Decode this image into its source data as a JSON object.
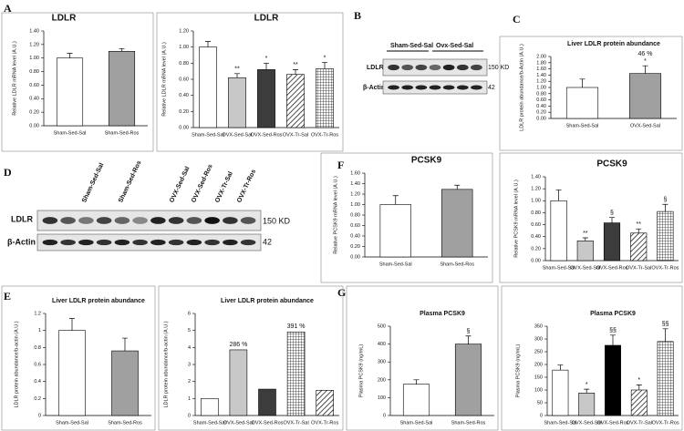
{
  "panel_labels": [
    "A",
    "B",
    "C",
    "D",
    "E",
    "F",
    "G"
  ],
  "blots": [
    {
      "groups": [
        "Sham-Sed-Sal",
        "Ovx-Sed-Sal"
      ],
      "rows": [
        "LDLR",
        "β-Actin"
      ],
      "sizes": [
        "150 KD",
        "42"
      ]
    },
    {
      "groups": [
        "Sham-Sed-Sal",
        "Sham-Sed-Ros",
        "OVX-Sed-Sal",
        "OVX-Sed-Ros",
        "OVX-Tr-Sal",
        "OVX-Tr-Ros"
      ],
      "rows": [
        "LDLR",
        "β-Actin"
      ],
      "sizes": [
        "150 KD",
        "42"
      ]
    }
  ],
  "chart_data": [
    {
      "type": "bar",
      "title": "LDLR",
      "y_label": "Relative LDLR mRNA level (A.U.)",
      "categories": [
        "Sham-Sed-Sal",
        "Sham-Sed-Ros"
      ],
      "values": [
        1.0,
        1.1
      ],
      "errors": [
        0.07,
        0.04
      ],
      "colors": [
        "#ffffff",
        "#a0a0a0"
      ],
      "ylim": [
        0,
        1.4
      ],
      "yticks": [
        {
          "value": 0,
          "label": "0.00"
        },
        {
          "value": 0.2,
          "label": "0.20"
        },
        {
          "value": 0.4,
          "label": "0.40"
        },
        {
          "value": 0.6,
          "label": "0.60"
        },
        {
          "value": 0.8,
          "label": "0.80"
        },
        {
          "value": 1.0,
          "label": "1.00"
        },
        {
          "value": 1.2,
          "label": "1.20"
        },
        {
          "value": 1.4,
          "label": "1.40"
        }
      ]
    },
    {
      "type": "bar",
      "title": "LDLR",
      "y_label": "Relative LDLR mRNA level (A.U.)",
      "categories": [
        "Sham-Sed-Sal",
        "OVX-Sed-Sal",
        "OVX-Sed-Ros",
        "OVX-Tr-Sal",
        "OVX-Tr-Ros"
      ],
      "values": [
        1.0,
        0.62,
        0.72,
        0.66,
        0.73
      ],
      "errors": [
        0.07,
        0.05,
        0.08,
        0.06,
        0.08
      ],
      "bar_labels": [
        null,
        "**",
        "*",
        "**",
        "*"
      ],
      "colors": [
        "#ffffff",
        "#c8c8c8",
        "#3c3c3c",
        "hatch",
        "grid"
      ],
      "ylim": [
        0,
        1.2
      ],
      "yticks": [
        {
          "value": 0,
          "label": "0.00"
        },
        {
          "value": 0.2,
          "label": "0.20"
        },
        {
          "value": 0.4,
          "label": "0.40"
        },
        {
          "value": 0.6,
          "label": "0.60"
        },
        {
          "value": 0.8,
          "label": "0.80"
        },
        {
          "value": 1.0,
          "label": "1.00"
        },
        {
          "value": 1.2,
          "label": "1.20"
        }
      ]
    },
    {
      "type": "bar",
      "title": "Liver LDLR protein abundance",
      "y_label": "LDLR protein abundance/b-Actin (A.U.)",
      "categories": [
        "Sham-Sed-Sal",
        "OVX-Sed-Sal"
      ],
      "values": [
        1.0,
        1.45
      ],
      "errors": [
        0.27,
        0.25
      ],
      "bar_labels": [
        null,
        "*"
      ],
      "notes": [
        null,
        "46 %"
      ],
      "colors": [
        "#ffffff",
        "#a0a0a0"
      ],
      "ylim": [
        0,
        2.0
      ],
      "yticks": [
        {
          "value": 0,
          "label": "0.00"
        },
        {
          "value": 0.2,
          "label": "0.20"
        },
        {
          "value": 0.4,
          "label": "0.40"
        },
        {
          "value": 0.6,
          "label": "0.60"
        },
        {
          "value": 0.8,
          "label": "0.80"
        },
        {
          "value": 1.0,
          "label": "1.00"
        },
        {
          "value": 1.2,
          "label": "1.20"
        },
        {
          "value": 1.4,
          "label": "1.40"
        },
        {
          "value": 1.6,
          "label": "1.60"
        },
        {
          "value": 1.8,
          "label": "1.80"
        },
        {
          "value": 2.0,
          "label": "2.00"
        }
      ]
    },
    {
      "type": "bar",
      "title": "PCSK9",
      "y_label": "Relative PCSK9 mRNA level (A.U.)",
      "categories": [
        "Sham-Sed-Sal",
        "Sham-Sed-Ros"
      ],
      "values": [
        1.0,
        1.29
      ],
      "errors": [
        0.17,
        0.08
      ],
      "colors": [
        "#ffffff",
        "#a0a0a0"
      ],
      "ylim": [
        0,
        1.6
      ],
      "yticks": [
        {
          "value": 0,
          "label": "0.00"
        },
        {
          "value": 0.2,
          "label": "0.20"
        },
        {
          "value": 0.4,
          "label": "0.40"
        },
        {
          "value": 0.6,
          "label": "0.60"
        },
        {
          "value": 0.8,
          "label": "0.80"
        },
        {
          "value": 1.0,
          "label": "1.00"
        },
        {
          "value": 1.2,
          "label": "1.20"
        },
        {
          "value": 1.4,
          "label": "1.40"
        },
        {
          "value": 1.6,
          "label": "1.60"
        }
      ]
    },
    {
      "type": "bar",
      "title": "PCSK9",
      "y_label": "Relative PCSK9 mRNA level (A.U.)",
      "categories": [
        "Sham-Sed-Sal",
        "OVX-Sed-Sal",
        "OVX-Sed-Ros",
        "OVX-Tr-Sal",
        "OVX-Tr-Ros"
      ],
      "values": [
        1.0,
        0.33,
        0.63,
        0.46,
        0.82
      ],
      "errors": [
        0.18,
        0.05,
        0.09,
        0.07,
        0.12
      ],
      "bar_labels": [
        null,
        "**",
        "§",
        "**",
        "§"
      ],
      "colors": [
        "#ffffff",
        "#c8c8c8",
        "#3c3c3c",
        "hatch",
        "grid"
      ],
      "ylim": [
        0,
        1.4
      ],
      "yticks": [
        {
          "value": 0,
          "label": "0.00"
        },
        {
          "value": 0.2,
          "label": "0.20"
        },
        {
          "value": 0.4,
          "label": "0.40"
        },
        {
          "value": 0.6,
          "label": "0.60"
        },
        {
          "value": 0.8,
          "label": "0.80"
        },
        {
          "value": 1.0,
          "label": "1.00"
        },
        {
          "value": 1.2,
          "label": "1.20"
        },
        {
          "value": 1.4,
          "label": "1.40"
        }
      ]
    },
    {
      "type": "bar",
      "title": "Liver LDLR protein abundance",
      "y_label": "LDLR protein abundance/b-actin (A.U.)",
      "categories": [
        "Sham-Sed-Sal",
        "Sham-Sed-Ros"
      ],
      "values": [
        1.0,
        0.76
      ],
      "errors": [
        0.14,
        0.15
      ],
      "colors": [
        "#ffffff",
        "#a0a0a0"
      ],
      "ylim": [
        0,
        1.2
      ],
      "yticks": [
        0,
        0.2,
        0.4,
        0.6,
        0.8,
        1,
        1.2
      ]
    },
    {
      "type": "bar",
      "title": "Liver LDLR protein abundance",
      "y_label": "LDLR protein abundance/b-actin (A.U.)",
      "categories": [
        "Sham-Sed-Sal",
        "OVX-Sed-Sal",
        "OVX-Sed-Ros",
        "OVX-Tr-Sal",
        "OVX-Tr-Ros"
      ],
      "values": [
        1,
        3.86,
        1.55,
        4.91,
        1.48
      ],
      "notes": [
        null,
        "286 %",
        null,
        "391 %",
        null
      ],
      "colors": [
        "#ffffff",
        "#c8c8c8",
        "#3c3c3c",
        "grid",
        "hatch"
      ],
      "ylim": [
        0,
        6
      ],
      "yticks": [
        0,
        1,
        2,
        3,
        4,
        5,
        6
      ]
    },
    {
      "type": "bar",
      "title": "Plasma PCSK9",
      "y_label": "Plasma PCSK9 (ng/mL)",
      "categories": [
        "Sham-Sed-Sal",
        "Sham-Sed-Ros"
      ],
      "values": [
        175,
        400
      ],
      "errors": [
        25,
        45
      ],
      "bar_labels": [
        null,
        "§"
      ],
      "colors": [
        "#ffffff",
        "#a0a0a0"
      ],
      "ylim": [
        0,
        500
      ],
      "yticks": [
        0,
        100,
        200,
        300,
        400,
        500
      ]
    },
    {
      "type": "bar",
      "title": "Plasma PCSK9",
      "y_label": "Plasma PCSK9 (ng/mL)",
      "categories": [
        "Sham-Sed-Sal",
        "OVX-Sed-Sal",
        "OVX-Sed-Ros",
        "OVX-Tr-Sal",
        "OVX-Tr-Ros"
      ],
      "values": [
        178,
        88,
        275,
        100,
        290
      ],
      "errors": [
        20,
        15,
        40,
        20,
        50
      ],
      "bar_labels": [
        null,
        "*",
        "§§",
        "*",
        "§§"
      ],
      "colors": [
        "#ffffff",
        "#c8c8c8",
        "#000000",
        "hatch",
        "grid"
      ],
      "ylim": [
        0,
        350
      ],
      "yticks": [
        0,
        50,
        100,
        150,
        200,
        250,
        300,
        350
      ]
    }
  ]
}
